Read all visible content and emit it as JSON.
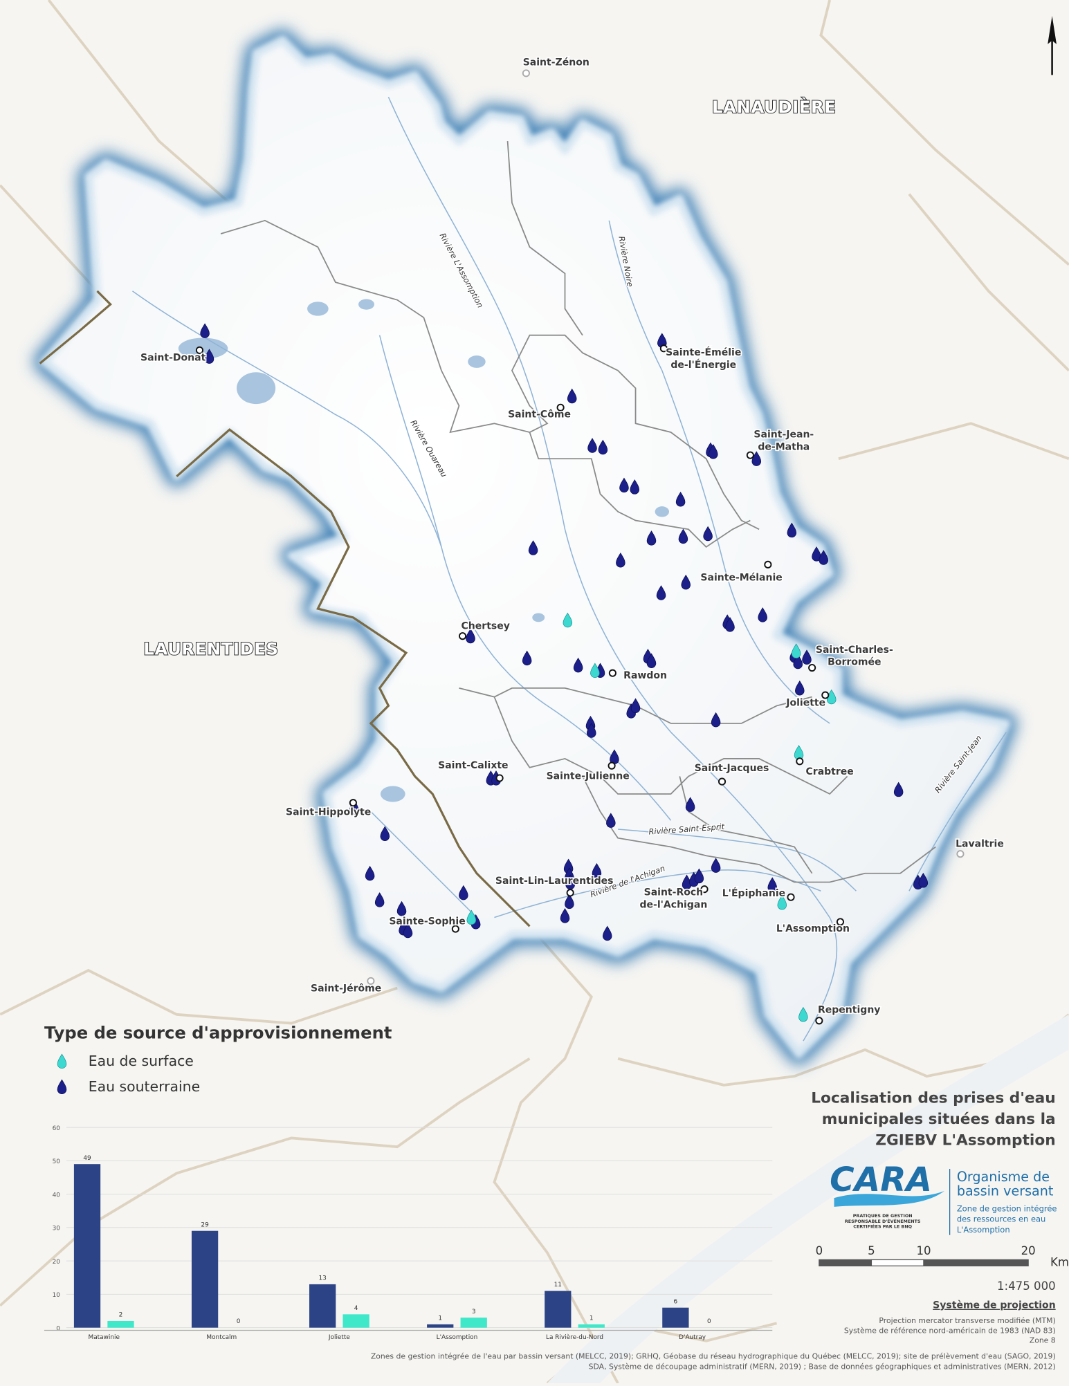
{
  "map": {
    "regions": [
      "LANAUDIÈRE",
      "LAURENTIDES"
    ],
    "places": [
      [
        "Saint-Zénon"
      ],
      [
        "Saint-Donat"
      ],
      [
        "Sainte-Émélie",
        "de-l'Énergie"
      ],
      [
        "Saint-Côme"
      ],
      [
        "Saint-Jean-",
        "de-Matha"
      ],
      [
        "Sainte-Mélanie"
      ],
      [
        "Chertsey"
      ],
      [
        "Rawdon"
      ],
      [
        "Saint-Charles-",
        "Borromée"
      ],
      [
        "Joliette"
      ],
      [
        "Saint-Calixte"
      ],
      [
        "Sainte-Julienne"
      ],
      [
        "Saint-Jacques"
      ],
      [
        "Crabtree"
      ],
      [
        "Saint-Hippolyte"
      ],
      [
        "Lavaltrie"
      ],
      [
        "Saint-Lin-Laurentides"
      ],
      [
        "Saint-Roch",
        "de-l'Achigan"
      ],
      [
        "L'Épiphanie"
      ],
      [
        "Sainte-Sophie"
      ],
      [
        "L'Assomption"
      ],
      [
        "Saint-Jérôme"
      ],
      [
        "Repentigny"
      ]
    ],
    "rivers": [
      "Rivière L'Assomption",
      "Rivière Noire",
      "Rivière Ouareau",
      "Rivière Saint-Esprit",
      "Rivière de l'Achigan",
      "Rivière Saint-Jean"
    ],
    "legend_title": "Type de source d'approvisionnement",
    "title": [
      "Localisation des prises d'eau",
      "municipales situées dans la",
      "ZGIEBV L'Assomption"
    ],
    "logo": {
      "name": "CARA",
      "certification": [
        "PRATIQUES DE GESTION",
        "RESPONSABLE D'ÉVÉNEMENTS",
        "CERTIFIÉES PAR LE BNQ"
      ],
      "org": [
        "Organisme de",
        "bassin versant"
      ],
      "zone": [
        "Zone de gestion intégrée",
        "des ressources en eau",
        "L'Assomption"
      ]
    },
    "scale": {
      "ticks": [
        0,
        5,
        10,
        20
      ],
      "unit": "Km",
      "ratio": "1:475 000"
    },
    "projection": {
      "title": "Système de projection",
      "lines": [
        "Projection mercator transverse modifiée (MTM)",
        "Système de référence nord-américain de 1983 (NAD 83)",
        "Zone 8"
      ]
    },
    "sources": [
      "Zones de gestion intégrée de l'eau par bassin versant (MELCC, 2019); GRHQ, Géobase du réseau hydrographique du Québec (MELCC, 2019); site de prélèvement d'eau (SAGO, 2019)",
      "SDA, Système de découpage administratif (MERN, 2019) ; Base de données géographiques et administratives (MERN, 2012)"
    ]
  },
  "chart_data": {
    "type": "bar",
    "categories": [
      "Matawinie",
      "Montcalm",
      "Joliette",
      "L'Assomption",
      "La Rivière-du-Nord",
      "D'Autray"
    ],
    "series": [
      {
        "name": "Eau souterraine",
        "color": "#2c4486",
        "values": [
          49,
          29,
          13,
          1,
          11,
          6
        ]
      },
      {
        "name": "Eau de surface",
        "color": "#3ee8c9",
        "values": [
          2,
          0,
          4,
          3,
          1,
          0
        ]
      }
    ],
    "ylim": [
      0,
      60
    ],
    "yticks": [
      0,
      10,
      20,
      30,
      40,
      50,
      60
    ],
    "grid": true
  }
}
